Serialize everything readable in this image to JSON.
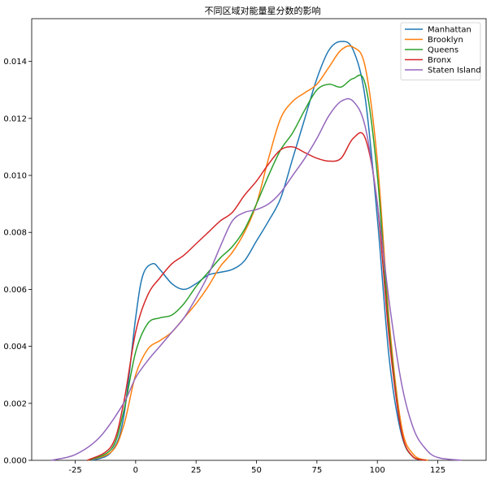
{
  "chart_data": {
    "type": "line",
    "title": "不同区域对能量星分数的影响",
    "xlabel": "",
    "ylabel": "",
    "xlim": [
      -43,
      145
    ],
    "ylim": [
      0,
      0.0155
    ],
    "xticks": [
      -25,
      0,
      25,
      50,
      75,
      100,
      125
    ],
    "yticks": [
      0.0,
      0.002,
      0.004,
      0.006,
      0.008,
      0.01,
      0.012,
      0.014
    ],
    "ytick_labels": [
      "0.000",
      "0.002",
      "0.004",
      "0.006",
      "0.008",
      "0.010",
      "0.012",
      "0.014"
    ],
    "grid": false,
    "legend_position": "top-right",
    "series": [
      {
        "name": "Manhattan",
        "color": "#1f77b4",
        "x": [
          -18,
          -10,
          -5,
          0,
          3,
          7,
          10,
          15,
          20,
          25,
          30,
          35,
          40,
          45,
          50,
          55,
          60,
          65,
          70,
          75,
          80,
          85,
          90,
          95,
          100,
          105,
          110,
          115,
          120
        ],
        "y": [
          0.0,
          0.0003,
          0.0015,
          0.005,
          0.0065,
          0.0069,
          0.0067,
          0.0062,
          0.006,
          0.0062,
          0.0065,
          0.0066,
          0.0067,
          0.007,
          0.0077,
          0.0084,
          0.0092,
          0.0106,
          0.012,
          0.0134,
          0.0144,
          0.0147,
          0.0144,
          0.0127,
          0.0085,
          0.0035,
          0.0009,
          0.0001,
          0.0
        ]
      },
      {
        "name": "Brooklyn",
        "color": "#ff7f0e",
        "x": [
          -20,
          -10,
          -5,
          0,
          5,
          10,
          15,
          20,
          25,
          30,
          35,
          40,
          45,
          50,
          55,
          60,
          65,
          70,
          75,
          80,
          85,
          90,
          95,
          100,
          105,
          110,
          115,
          121
        ],
        "y": [
          0.0,
          0.0003,
          0.0012,
          0.003,
          0.0039,
          0.0042,
          0.0045,
          0.005,
          0.0055,
          0.0061,
          0.0068,
          0.0073,
          0.008,
          0.009,
          0.0106,
          0.012,
          0.0126,
          0.0129,
          0.0132,
          0.0138,
          0.0144,
          0.0145,
          0.0138,
          0.0105,
          0.0048,
          0.0012,
          0.0002,
          0.0
        ]
      },
      {
        "name": "Queens",
        "color": "#2ca02c",
        "x": [
          -20,
          -10,
          -5,
          0,
          5,
          10,
          15,
          20,
          25,
          30,
          35,
          40,
          45,
          50,
          55,
          60,
          65,
          70,
          75,
          80,
          85,
          90,
          95,
          100,
          105,
          110,
          115,
          120
        ],
        "y": [
          0.0,
          0.0004,
          0.0017,
          0.0038,
          0.0048,
          0.005,
          0.0051,
          0.0055,
          0.0061,
          0.0066,
          0.0071,
          0.0075,
          0.0081,
          0.009,
          0.01,
          0.0109,
          0.0115,
          0.0123,
          0.013,
          0.0132,
          0.0131,
          0.0134,
          0.0132,
          0.01,
          0.0045,
          0.001,
          0.0001,
          0.0
        ]
      },
      {
        "name": "Bronx",
        "color": "#d62728",
        "x": [
          -20,
          -10,
          -5,
          0,
          5,
          10,
          15,
          20,
          25,
          30,
          35,
          40,
          45,
          50,
          55,
          60,
          65,
          70,
          75,
          80,
          85,
          90,
          95,
          100,
          105,
          110,
          115,
          120
        ],
        "y": [
          0.0,
          0.0005,
          0.002,
          0.0045,
          0.0058,
          0.0064,
          0.0069,
          0.0072,
          0.0076,
          0.008,
          0.0084,
          0.0087,
          0.0093,
          0.0098,
          0.0104,
          0.0109,
          0.011,
          0.0108,
          0.0106,
          0.0105,
          0.0106,
          0.0113,
          0.0113,
          0.009,
          0.0042,
          0.001,
          0.0001,
          0.0
        ]
      },
      {
        "name": "Staten Island",
        "color": "#9467bd",
        "x": [
          -35,
          -25,
          -15,
          -5,
          0,
          5,
          10,
          15,
          20,
          25,
          30,
          35,
          40,
          45,
          50,
          55,
          60,
          65,
          70,
          75,
          80,
          85,
          90,
          95,
          100,
          105,
          110,
          115,
          120,
          125,
          135
        ],
        "y": [
          0.0,
          0.0002,
          0.0008,
          0.002,
          0.0029,
          0.0035,
          0.004,
          0.0045,
          0.005,
          0.0057,
          0.0065,
          0.0075,
          0.0084,
          0.0087,
          0.0088,
          0.009,
          0.0094,
          0.01,
          0.0106,
          0.0113,
          0.0121,
          0.0126,
          0.0126,
          0.0117,
          0.009,
          0.0055,
          0.0027,
          0.0011,
          0.0004,
          0.0001,
          0.0
        ]
      }
    ]
  }
}
